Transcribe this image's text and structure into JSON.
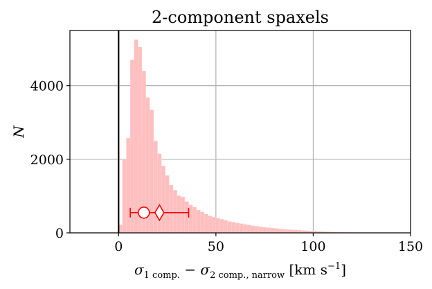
{
  "chart_data": {
    "type": "bar",
    "title": "2-component spaxels",
    "xlabel": "σ1 comp. − σ2 comp., narrow [km s−1]",
    "ylabel": "N",
    "xlim": [
      -25,
      150
    ],
    "ylim": [
      0,
      5500
    ],
    "xticks": [
      0,
      50,
      100,
      150
    ],
    "yticks": [
      0,
      2000,
      4000
    ],
    "xtick_labels": [
      "0",
      "50",
      "100",
      "150"
    ],
    "ytick_labels": [
      "0",
      "2000",
      "4000"
    ],
    "grid": true,
    "bin_width": 2,
    "bin_start": 0,
    "counts": [
      220,
      2000,
      2580,
      4700,
      5250,
      5050,
      4400,
      3680,
      3340,
      2500,
      2150,
      1820,
      1560,
      1300,
      1160,
      1010,
      980,
      850,
      760,
      700,
      620,
      570,
      510,
      460,
      430,
      400,
      370,
      340,
      310,
      290,
      270,
      250,
      230,
      210,
      195,
      180,
      165,
      150,
      140,
      130,
      120,
      110,
      100,
      92,
      85,
      78,
      70,
      64,
      58,
      52,
      46,
      40,
      35,
      30,
      26,
      22,
      18,
      15,
      12,
      10
    ],
    "bar_color": "#ffbfbf",
    "vline_x": 0,
    "markers": {
      "color": "#ff0000",
      "y": 550,
      "errorbar": [
        6,
        36
      ],
      "circle_x": 13,
      "diamond_x": 21
    }
  }
}
